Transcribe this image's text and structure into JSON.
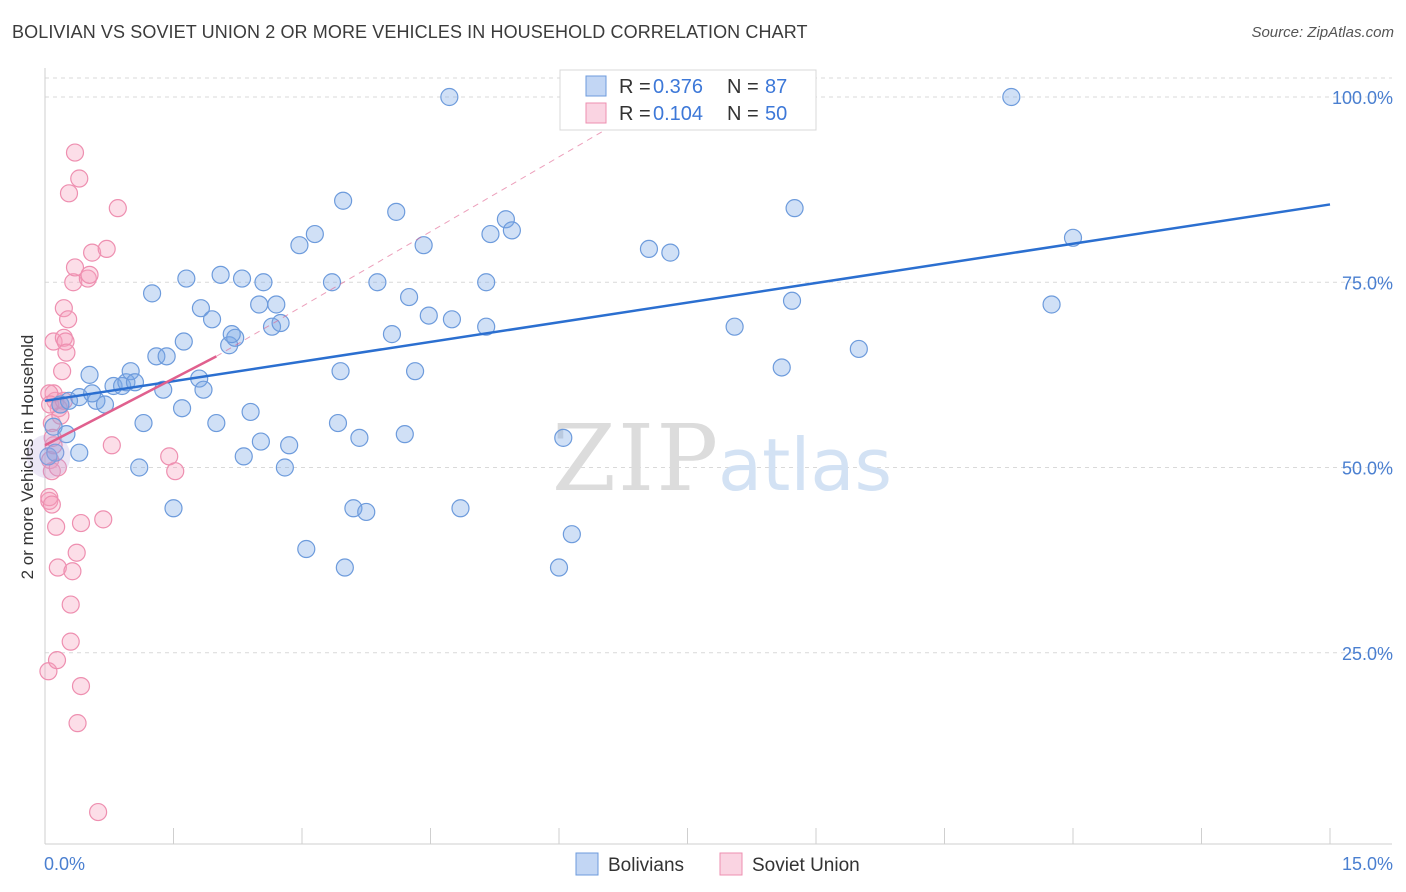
{
  "title": "BOLIVIAN VS SOVIET UNION 2 OR MORE VEHICLES IN HOUSEHOLD CORRELATION CHART",
  "source": "Source: ZipAtlas.com",
  "watermark": {
    "zip": "ZIP",
    "atlas": "atlas"
  },
  "colors": {
    "blue_fill": "rgba(120,165,230,0.35)",
    "blue_stroke": "#6d9bdc",
    "blue_line": "#2b6fd0",
    "pink_fill": "rgba(245,160,190,0.35)",
    "pink_stroke": "#ee8fb0",
    "pink_line": "#e0608e",
    "grid": "#d9d9d9",
    "axis_text": "#4a7fd0"
  },
  "legend": {
    "rows": [
      {
        "r_label": "R = ",
        "r_value": "0.376",
        "n_label": "N = ",
        "n_value": "87",
        "series": "Bolivians"
      },
      {
        "r_label": "R = ",
        "r_value": "0.104",
        "n_label": "N = ",
        "n_value": "50",
        "series": "Soviet Union"
      }
    ]
  },
  "chart_data": {
    "type": "scatter",
    "title": "BOLIVIAN VS SOVIET UNION 2 OR MORE VEHICLES IN HOUSEHOLD CORRELATION CHART",
    "xlabel": "",
    "ylabel": "2 or more Vehicles in Household",
    "xlim": [
      0,
      15
    ],
    "ylim": [
      0,
      102
    ],
    "x_tick_labels": [
      "0.0%",
      "15.0%"
    ],
    "y_tick_labels": [
      "100.0%",
      "75.0%",
      "50.0%",
      "25.0%"
    ],
    "y_ticks": [
      100,
      75,
      50,
      25
    ],
    "grid": true,
    "legend_position": "top-center",
    "series": [
      {
        "name": "Bolivians",
        "r": 0.376,
        "n": 87,
        "trend": {
          "x": [
            0.0,
            15.0
          ],
          "y": [
            59.0,
            85.5
          ],
          "style": "solid"
        },
        "points": [
          [
            0.04,
            51.5
          ],
          [
            0.1,
            55.5
          ],
          [
            0.12,
            52.0
          ],
          [
            0.18,
            58.5
          ],
          [
            0.25,
            54.5
          ],
          [
            0.28,
            59.0
          ],
          [
            0.4,
            52.0
          ],
          [
            0.4,
            59.5
          ],
          [
            0.52,
            62.5
          ],
          [
            0.6,
            59.0
          ],
          [
            0.7,
            58.5
          ],
          [
            0.8,
            61.0
          ],
          [
            0.9,
            61.0
          ],
          [
            0.95,
            61.5
          ],
          [
            1.0,
            63.0
          ],
          [
            1.1,
            50.0
          ],
          [
            1.15,
            56.0
          ],
          [
            1.25,
            73.5
          ],
          [
            1.3,
            65.0
          ],
          [
            1.38,
            60.5
          ],
          [
            1.42,
            65.0
          ],
          [
            1.5,
            44.5
          ],
          [
            1.6,
            58.0
          ],
          [
            1.62,
            67.0
          ],
          [
            1.65,
            75.5
          ],
          [
            1.8,
            62.0
          ],
          [
            1.82,
            71.5
          ],
          [
            1.85,
            60.5
          ],
          [
            1.95,
            70.0
          ],
          [
            2.0,
            56.0
          ],
          [
            2.05,
            76.0
          ],
          [
            2.15,
            66.5
          ],
          [
            2.22,
            67.5
          ],
          [
            2.3,
            75.5
          ],
          [
            2.32,
            51.5
          ],
          [
            2.4,
            57.5
          ],
          [
            2.5,
            72.0
          ],
          [
            2.52,
            53.5
          ],
          [
            2.55,
            75.0
          ],
          [
            2.65,
            69.0
          ],
          [
            2.7,
            72.0
          ],
          [
            2.75,
            69.5
          ],
          [
            2.8,
            50.0
          ],
          [
            2.85,
            53.0
          ],
          [
            2.97,
            80.0
          ],
          [
            3.05,
            39.0
          ],
          [
            3.15,
            81.5
          ],
          [
            3.35,
            75.0
          ],
          [
            3.45,
            63.0
          ],
          [
            3.48,
            86.0
          ],
          [
            3.5,
            36.5
          ],
          [
            3.67,
            54.0
          ],
          [
            3.6,
            44.5
          ],
          [
            3.75,
            44.0
          ],
          [
            3.88,
            75.0
          ],
          [
            4.05,
            68.0
          ],
          [
            4.1,
            84.5
          ],
          [
            4.2,
            54.5
          ],
          [
            4.25,
            73.0
          ],
          [
            4.32,
            63.0
          ],
          [
            4.42,
            80.0
          ],
          [
            4.48,
            70.5
          ],
          [
            4.72,
            100.0
          ],
          [
            4.75,
            70.0
          ],
          [
            4.85,
            44.5
          ],
          [
            5.15,
            75.0
          ],
          [
            5.15,
            69.0
          ],
          [
            5.2,
            81.5
          ],
          [
            5.38,
            83.5
          ],
          [
            5.45,
            82.0
          ],
          [
            6.0,
            36.5
          ],
          [
            6.05,
            54.0
          ],
          [
            6.15,
            41.0
          ],
          [
            7.05,
            79.5
          ],
          [
            7.3,
            79.0
          ],
          [
            8.05,
            69.0
          ],
          [
            8.6,
            63.5
          ],
          [
            8.72,
            72.5
          ],
          [
            8.75,
            85.0
          ],
          [
            9.5,
            66.0
          ],
          [
            11.28,
            100.0
          ],
          [
            11.75,
            72.0
          ],
          [
            12.0,
            81.0
          ],
          [
            3.42,
            56.0
          ],
          [
            1.05,
            61.5
          ],
          [
            0.55,
            60.0
          ],
          [
            2.18,
            68.0
          ]
        ]
      },
      {
        "name": "Soviet Union",
        "r": 0.104,
        "n": 50,
        "trend": {
          "x": [
            0.0,
            2.0
          ],
          "y": [
            53.0,
            65.0
          ],
          "style": "solid"
        },
        "trend_extension": {
          "x": [
            2.0,
            7.2
          ],
          "y": [
            65.0,
            100.0
          ],
          "style": "dashed"
        },
        "points": [
          [
            0.04,
            22.5
          ],
          [
            0.05,
            45.5
          ],
          [
            0.05,
            46.0
          ],
          [
            0.06,
            51.0
          ],
          [
            0.08,
            49.5
          ],
          [
            0.08,
            56.0
          ],
          [
            0.1,
            60.0
          ],
          [
            0.1,
            67.0
          ],
          [
            0.12,
            59.0
          ],
          [
            0.13,
            42.0
          ],
          [
            0.14,
            24.0
          ],
          [
            0.15,
            36.5
          ],
          [
            0.15,
            50.0
          ],
          [
            0.18,
            58.5
          ],
          [
            0.2,
            63.0
          ],
          [
            0.22,
            67.5
          ],
          [
            0.22,
            71.5
          ],
          [
            0.24,
            67.0
          ],
          [
            0.25,
            65.5
          ],
          [
            0.27,
            70.0
          ],
          [
            0.28,
            87.0
          ],
          [
            0.3,
            31.5
          ],
          [
            0.3,
            26.5
          ],
          [
            0.32,
            36.0
          ],
          [
            0.33,
            75.0
          ],
          [
            0.35,
            92.5
          ],
          [
            0.35,
            77.0
          ],
          [
            0.37,
            38.5
          ],
          [
            0.38,
            15.5
          ],
          [
            0.4,
            89.0
          ],
          [
            0.42,
            42.5
          ],
          [
            0.42,
            20.5
          ],
          [
            0.5,
            75.5
          ],
          [
            0.52,
            76.0
          ],
          [
            0.55,
            79.0
          ],
          [
            0.62,
            3.5
          ],
          [
            0.68,
            43.0
          ],
          [
            0.72,
            79.5
          ],
          [
            0.78,
            53.0
          ],
          [
            0.85,
            85.0
          ],
          [
            1.45,
            51.5
          ],
          [
            1.52,
            49.5
          ],
          [
            0.05,
            60.0
          ],
          [
            0.1,
            53.0
          ],
          [
            0.16,
            58.0
          ],
          [
            0.08,
            45.0
          ],
          [
            0.18,
            57.0
          ],
          [
            0.09,
            54.0
          ],
          [
            0.06,
            58.5
          ],
          [
            0.22,
            59.0
          ]
        ]
      }
    ]
  }
}
